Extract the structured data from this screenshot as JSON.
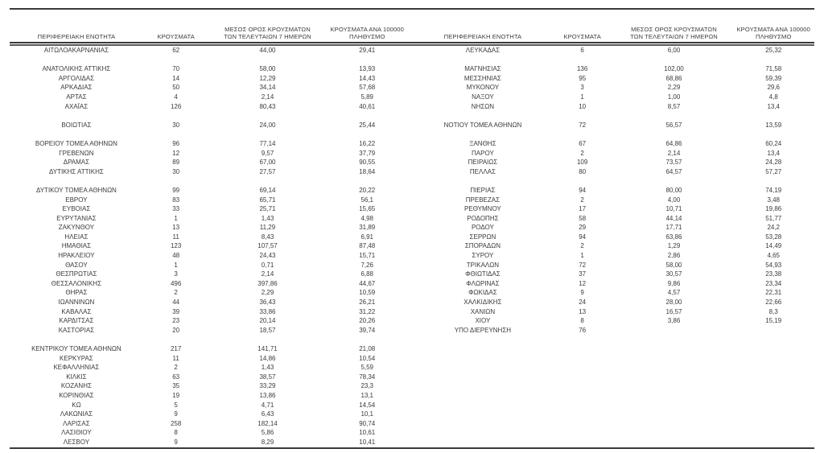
{
  "page": {
    "background": "#ffffff",
    "text_color": "#3b3b3b",
    "rule_color": "#3a3a3a"
  },
  "headers": {
    "region": "ΠΕΡΙΦΕΡΕΙΑΚΗ ΕΝΟΤΗΤΑ",
    "cases": "ΚΡΟΥΣΜΑΤΑ",
    "avg7_line1": "ΜΕΣΟΣ ΟΡΟΣ ΚΡΟΥΣΜΑΤΩΝ",
    "avg7_line2": "ΤΩΝ ΤΕΛΕΥΤΑΙΩΝ 7 ΗΜΕΡΩΝ",
    "per100k_line1": "ΚΡΟΥΣΜΑΤΑ ΑΝΑ 100000",
    "per100k_line2": "ΠΛΗΘΥΣΜΟ"
  },
  "left_table": {
    "rows": [
      [
        "ΑΙΤΩΛΟΑΚΑΡΝΑΝΙΑΣ",
        "62",
        "44,00",
        "29,41"
      ],
      [
        "",
        "",
        "",
        ""
      ],
      [
        "ΑΝΑΤΟΛΙΚΗΣ ΑΤΤΙΚΗΣ",
        "70",
        "58,00",
        "13,93"
      ],
      [
        "ΑΡΓΟΛΙΔΑΣ",
        "14",
        "12,29",
        "14,43"
      ],
      [
        "ΑΡΚΑΔΙΑΣ",
        "50",
        "34,14",
        "57,68"
      ],
      [
        "ΑΡΤΑΣ",
        "4",
        "2,14",
        "5,89"
      ],
      [
        "ΑΧΑΪΑΣ",
        "126",
        "80,43",
        "40,61"
      ],
      [
        "",
        "",
        "",
        ""
      ],
      [
        "ΒΟΙΩΤΙΑΣ",
        "30",
        "24,00",
        "25,44"
      ],
      [
        "",
        "",
        "",
        ""
      ],
      [
        "ΒΟΡΕΙΟΥ ΤΟΜΕΑ ΑΘΗΝΩΝ",
        "96",
        "77,14",
        "16,22"
      ],
      [
        "ΓΡΕΒΕΝΩΝ",
        "12",
        "9,57",
        "37,79"
      ],
      [
        "ΔΡΑΜΑΣ",
        "89",
        "67,00",
        "90,55"
      ],
      [
        "ΔΥΤΙΚΗΣ ΑΤΤΙΚΗΣ",
        "30",
        "27,57",
        "18,64"
      ],
      [
        "",
        "",
        "",
        ""
      ],
      [
        "ΔΥΤΙΚΟΥ ΤΟΜΕΑ ΑΘΗΝΩΝ",
        "99",
        "69,14",
        "20,22"
      ],
      [
        "ΕΒΡΟΥ",
        "83",
        "65,71",
        "56,1"
      ],
      [
        "ΕΥΒΟΙΑΣ",
        "33",
        "25,71",
        "15,65"
      ],
      [
        "ΕΥΡΥΤΑΝΙΑΣ",
        "1",
        "1,43",
        "4,98"
      ],
      [
        "ΖΑΚΥΝΘΟΥ",
        "13",
        "11,29",
        "31,89"
      ],
      [
        "ΗΛΕΙΑΣ",
        "11",
        "8,43",
        "6,91"
      ],
      [
        "ΗΜΑΘΙΑΣ",
        "123",
        "107,57",
        "87,48"
      ],
      [
        "ΗΡΑΚΛΕΙΟΥ",
        "48",
        "24,43",
        "15,71"
      ],
      [
        "ΘΑΣΟΥ",
        "1",
        "0,71",
        "7,26"
      ],
      [
        "ΘΕΣΠΡΩΤΙΑΣ",
        "3",
        "2,14",
        "6,88"
      ],
      [
        "ΘΕΣΣΑΛΟΝΙΚΗΣ",
        "496",
        "397,86",
        "44,67"
      ],
      [
        "ΘΗΡΑΣ",
        "2",
        "2,29",
        "10,59"
      ],
      [
        "ΙΩΑΝΝΙΝΩΝ",
        "44",
        "36,43",
        "26,21"
      ],
      [
        "ΚΑΒΑΛΑΣ",
        "39",
        "33,86",
        "31,22"
      ],
      [
        "ΚΑΡΔΙΤΣΑΣ",
        "23",
        "20,14",
        "20,26"
      ],
      [
        "ΚΑΣΤΟΡΙΑΣ",
        "20",
        "18,57",
        "39,74"
      ],
      [
        "",
        "",
        "",
        ""
      ],
      [
        "ΚΕΝΤΡΙΚΟΥ ΤΟΜΕΑ ΑΘΗΝΩΝ",
        "217",
        "141,71",
        "21,08"
      ],
      [
        "ΚΕΡΚΥΡΑΣ",
        "11",
        "14,86",
        "10,54"
      ],
      [
        "ΚΕΦΑΛΛΗΝΙΑΣ",
        "2",
        "1,43",
        "5,59"
      ],
      [
        "ΚΙΛΚΙΣ",
        "63",
        "38,57",
        "78,34"
      ],
      [
        "ΚΟΖΑΝΗΣ",
        "35",
        "33,29",
        "23,3"
      ],
      [
        "ΚΟΡΙΝΘΙΑΣ",
        "19",
        "13,86",
        "13,1"
      ],
      [
        "ΚΩ",
        "5",
        "4,71",
        "14,54"
      ],
      [
        "ΛΑΚΩΝΙΑΣ",
        "9",
        "6,43",
        "10,1"
      ],
      [
        "ΛΑΡΙΣΑΣ",
        "258",
        "182,14",
        "90,74"
      ],
      [
        "ΛΑΣΙΘΙΟΥ",
        "8",
        "5,86",
        "10,61"
      ],
      [
        "ΛΕΣΒΟΥ",
        "9",
        "8,29",
        "10,41"
      ]
    ]
  },
  "right_table": {
    "rows": [
      [
        "ΛΕΥΚΑΔΑΣ",
        "6",
        "6,00",
        "25,32"
      ],
      [
        "",
        "",
        "",
        ""
      ],
      [
        "ΜΑΓΝΗΣΙΑΣ",
        "136",
        "102,00",
        "71,58"
      ],
      [
        "ΜΕΣΣΗΝΙΑΣ",
        "95",
        "68,86",
        "59,39"
      ],
      [
        "ΜΥΚΟΝΟΥ",
        "3",
        "2,29",
        "29,6"
      ],
      [
        "ΝΑΞΟΥ",
        "1",
        "1,00",
        "4,8"
      ],
      [
        "ΝΗΣΩΝ",
        "10",
        "8,57",
        "13,4"
      ],
      [
        "",
        "",
        "",
        ""
      ],
      [
        "ΝΟΤΙΟΥ ΤΟΜΕΑ ΑΘΗΝΩΝ",
        "72",
        "56,57",
        "13,59"
      ],
      [
        "",
        "",
        "",
        ""
      ],
      [
        "ΞΑΝΘΗΣ",
        "67",
        "64,86",
        "60,24"
      ],
      [
        "ΠΑΡΟΥ",
        "2",
        "2,14",
        "13,4"
      ],
      [
        "ΠΕΙΡΑΙΩΣ",
        "109",
        "73,57",
        "24,28"
      ],
      [
        "ΠΕΛΛΑΣ",
        "80",
        "64,57",
        "57,27"
      ],
      [
        "",
        "",
        "",
        ""
      ],
      [
        "ΠΙΕΡΙΑΣ",
        "94",
        "80,00",
        "74,19"
      ],
      [
        "ΠΡΕΒΕΖΑΣ",
        "2",
        "4,00",
        "3,48"
      ],
      [
        "ΡΕΘΥΜΝΟΥ",
        "17",
        "10,71",
        "19,86"
      ],
      [
        "ΡΟΔΟΠΗΣ",
        "58",
        "44,14",
        "51,77"
      ],
      [
        "ΡΟΔΟΥ",
        "29",
        "17,71",
        "24,2"
      ],
      [
        "ΣΕΡΡΩΝ",
        "94",
        "63,86",
        "53,28"
      ],
      [
        "ΣΠΟΡΑΔΩΝ",
        "2",
        "1,29",
        "14,49"
      ],
      [
        "ΣΥΡΟΥ",
        "1",
        "2,86",
        "4,65"
      ],
      [
        "ΤΡΙΚΑΛΩΝ",
        "72",
        "58,00",
        "54,93"
      ],
      [
        "ΦΘΙΩΤΙΔΑΣ",
        "37",
        "30,57",
        "23,38"
      ],
      [
        "ΦΛΩΡΙΝΑΣ",
        "12",
        "9,86",
        "23,34"
      ],
      [
        "ΦΩΚΙΔΑΣ",
        "9",
        "4,57",
        "22,31"
      ],
      [
        "ΧΑΛΚΙΔΙΚΗΣ",
        "24",
        "28,00",
        "22,66"
      ],
      [
        "ΧΑΝΙΩΝ",
        "13",
        "16,57",
        "8,3"
      ],
      [
        "ΧΙΟΥ",
        "8",
        "3,86",
        "15,19"
      ],
      [
        "ΥΠΟ ΔΙΕΡΕΥΝΗΣΗ",
        "76",
        "",
        ""
      ],
      [
        "",
        "",
        "",
        ""
      ],
      [
        "",
        "",
        "",
        ""
      ],
      [
        "",
        "",
        "",
        ""
      ],
      [
        "",
        "",
        "",
        ""
      ],
      [
        "",
        "",
        "",
        ""
      ],
      [
        "",
        "",
        "",
        ""
      ],
      [
        "",
        "",
        "",
        ""
      ],
      [
        "",
        "",
        "",
        ""
      ],
      [
        "",
        "",
        "",
        ""
      ],
      [
        "",
        "",
        "",
        ""
      ],
      [
        "",
        "",
        "",
        ""
      ],
      [
        "",
        "",
        "",
        ""
      ]
    ]
  }
}
